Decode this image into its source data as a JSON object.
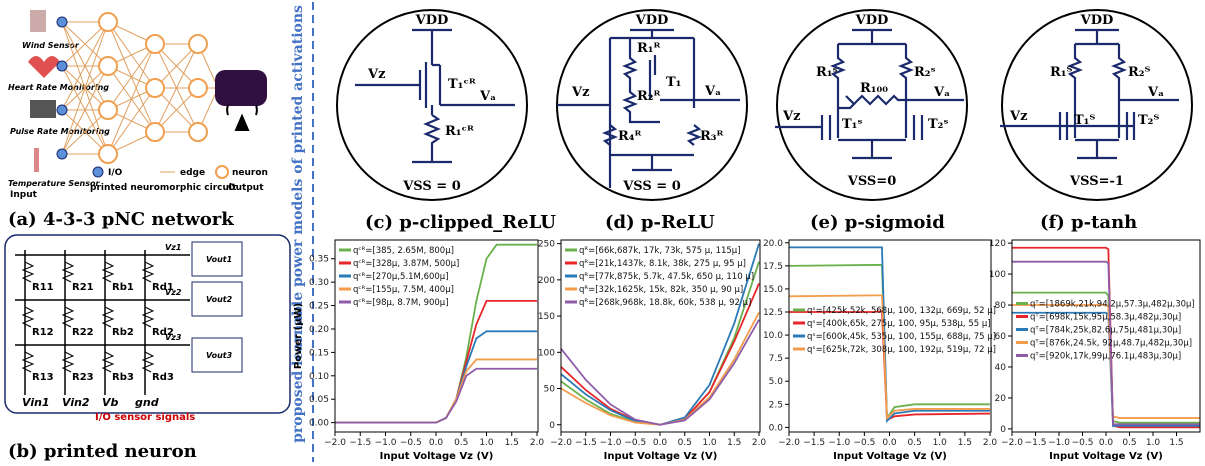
{
  "panel_a": {
    "caption": "(a) 4-3-3 pNC network",
    "sensors": [
      "Wind Sensor",
      "Heart Rate Monitoring",
      "Pulse Rate Monitoring",
      "Temperature Sensor"
    ],
    "legend": [
      "I/O",
      "edge",
      "neuron"
    ],
    "input": "Input",
    "middle": "printed neuromorphic circuit",
    "output": "Output"
  },
  "panel_b": {
    "caption": "(b) printed neuron",
    "resistors": [
      "R11",
      "R21",
      "Rb1",
      "Rd1",
      "R12",
      "R22",
      "Rb2",
      "Rd2",
      "R13",
      "R23",
      "Rb3",
      "Rd3"
    ],
    "vz": [
      "Vz1",
      "Vz2",
      "Vz3"
    ],
    "vout": [
      "Vout1",
      "Vout2",
      "Vout3"
    ],
    "bottom": [
      "Vin1",
      "Vin2",
      "Vb",
      "gnd"
    ],
    "note": "I/O sensor signals"
  },
  "side_title": "proposed learnable power models of printed activations",
  "circuits": [
    {
      "caption": "(c) p-clipped_ReLU",
      "labels": [
        "VDD",
        "Vz",
        "Vₐ",
        "T₁ᶜᴿ",
        "R₁ᶜᴿ",
        "VSS = 0"
      ]
    },
    {
      "caption": "(d) p-ReLU",
      "labels": [
        "VDD",
        "Vz",
        "Vₐ",
        "R₁ᴿ",
        "T₁",
        "R₂ᴿ",
        "R₄ᴿ",
        "R₃ᴿ",
        "VSS = 0"
      ]
    },
    {
      "caption": "(e) p-sigmoid",
      "labels": [
        "VDD",
        "Vz",
        "Vₐ",
        "R₁ˢ",
        "R₂ˢ",
        "R₁₀₀",
        "T₁ˢ",
        "T₂ˢ",
        "VSS=0"
      ]
    },
    {
      "caption": "(f) p-tanh",
      "labels": [
        "VDD",
        "Vz",
        "Vₐ",
        "R₁ᵀ",
        "R₂ᵀ",
        "T₁ᵀ",
        "T₂ᵀ",
        "VSS=-1"
      ]
    }
  ],
  "chart_data": [
    {
      "type": "line",
      "xlabel": "Input Voltage Vz (V)",
      "ylabel": "Power (µW)",
      "legend": "upper left",
      "x": [
        -2,
        -1,
        0,
        0.2,
        0.4,
        0.6,
        0.8,
        1.0,
        1.2,
        1.5,
        2
      ],
      "xlim": [
        -2,
        2.02
      ],
      "ylim": [
        -0.02,
        0.39
      ],
      "xticks": [
        {
          "value": -2,
          "label": "−2.0"
        },
        {
          "value": -1.5,
          "label": "−1.5"
        },
        {
          "value": -1,
          "label": "−1.0"
        },
        {
          "value": -0.5,
          "label": "−0.5"
        },
        {
          "value": 0,
          "label": "0.0"
        },
        {
          "value": 0.5,
          "label": "0.5"
        },
        {
          "value": 1,
          "label": "1.0"
        },
        {
          "value": 1.5,
          "label": "1.5"
        },
        {
          "value": 2,
          "label": "2.0"
        }
      ],
      "yticks": [
        {
          "value": 0,
          "label": "0.00"
        },
        {
          "value": 0.05,
          "label": "0.05"
        },
        {
          "value": 0.1,
          "label": "0.10"
        },
        {
          "value": 0.15,
          "label": "0.15"
        },
        {
          "value": 0.2,
          "label": "0.20"
        },
        {
          "value": 0.25,
          "label": "0.25"
        },
        {
          "value": 0.3,
          "label": "0.30"
        },
        {
          "value": 0.35,
          "label": "0.35"
        }
      ],
      "series": [
        {
          "name": "qᶜᴿ=[385, 2.65M, 800μ]",
          "color": "#6ab04c",
          "values": [
            0,
            0,
            0,
            0.01,
            0.05,
            0.14,
            0.26,
            0.35,
            0.38,
            0.38,
            0.38
          ]
        },
        {
          "name": "qᶜᴿ=[328μ, 3.87M, 500μ]",
          "color": "#e8262a",
          "values": [
            0,
            0,
            0,
            0.01,
            0.05,
            0.13,
            0.21,
            0.26,
            0.26,
            0.26,
            0.26
          ]
        },
        {
          "name": "qᶜᴿ=[270μ,5.1M,600μ]",
          "color": "#2a7ab8",
          "values": [
            0,
            0,
            0,
            0.01,
            0.05,
            0.12,
            0.18,
            0.195,
            0.195,
            0.195,
            0.195
          ]
        },
        {
          "name": "qᶜᴿ=[155μ, 7.5M, 400μ]",
          "color": "#f39c4c",
          "values": [
            0,
            0,
            0,
            0.01,
            0.05,
            0.11,
            0.135,
            0.135,
            0.135,
            0.135,
            0.135
          ]
        },
        {
          "name": "qᶜᴿ=[98μ, 8.7M, 900μ]",
          "color": "#8e5ca8",
          "values": [
            0,
            0,
            0,
            0.01,
            0.045,
            0.1,
            0.115,
            0.115,
            0.115,
            0.115,
            0.115
          ]
        }
      ]
    },
    {
      "type": "line",
      "xlabel": "Input Voltage Vz (V)",
      "legend": "upper left",
      "x": [
        -2,
        -1.5,
        -1,
        -0.5,
        0,
        0.5,
        1,
        1.5,
        2
      ],
      "xlim": [
        -2,
        2.02
      ],
      "ylim": [
        -10,
        255
      ],
      "xticks": [
        {
          "value": -2,
          "label": "−2.0"
        },
        {
          "value": -1.5,
          "label": "−1.5"
        },
        {
          "value": -1,
          "label": "−1.0"
        },
        {
          "value": -0.5,
          "label": "−0.5"
        },
        {
          "value": 0,
          "label": "0.0"
        },
        {
          "value": 0.5,
          "label": "0.5"
        },
        {
          "value": 1,
          "label": "1.0"
        },
        {
          "value": 1.5,
          "label": "1.5"
        },
        {
          "value": 2,
          "label": "2.0"
        }
      ],
      "yticks": [
        0,
        50,
        100,
        150,
        200,
        250
      ],
      "series": [
        {
          "name": "qᴿ=[66k,687k, 17k, 73k, 575 μ, 115μ]",
          "color": "#6ab04c",
          "values": [
            60,
            35,
            15,
            4,
            0,
            8,
            45,
            120,
            225
          ]
        },
        {
          "name": "qᴿ=[21k,1437k, 8.1k, 38k, 275 μ, 95 μ]",
          "color": "#e8262a",
          "values": [
            80,
            48,
            22,
            6,
            0,
            8,
            45,
            115,
            195
          ]
        },
        {
          "name": "qᴿ=[77k,875k, 5.7k, 47.5k, 650 μ, 110 μ]",
          "color": "#2a7ab8",
          "values": [
            70,
            42,
            20,
            5,
            0,
            10,
            55,
            140,
            250
          ]
        },
        {
          "name": "qᴿ=[32k,1625k, 15k, 82k, 350 μ, 90 μ]",
          "color": "#f39c4c",
          "values": [
            50,
            30,
            13,
            3,
            0,
            7,
            38,
            90,
            155
          ]
        },
        {
          "name": "qᴿ=[268k,968k, 18.8k, 60k, 538 μ, 92 μ]",
          "color": "#8e5ca8",
          "values": [
            105,
            62,
            28,
            7,
            0,
            6,
            35,
            85,
            145
          ]
        }
      ]
    },
    {
      "type": "line",
      "xlabel": "Input Voltage Vz (V)",
      "legend": "center left",
      "x": [
        -2,
        -0.3,
        -0.15,
        -0.05,
        0.1,
        0.5,
        2
      ],
      "xlim": [
        -2,
        2.02
      ],
      "ylim": [
        -0.5,
        20.3
      ],
      "xticks": [
        {
          "value": -2,
          "label": "−2.0"
        },
        {
          "value": -1.5,
          "label": "−1.5"
        },
        {
          "value": -1,
          "label": "−1.0"
        },
        {
          "value": -0.5,
          "label": "−0.5"
        },
        {
          "value": 0,
          "label": "0.0"
        },
        {
          "value": 0.5,
          "label": "0.5"
        },
        {
          "value": 1,
          "label": "1.0"
        },
        {
          "value": 1.5,
          "label": "1.5"
        },
        {
          "value": 2,
          "label": "2.0"
        }
      ],
      "yticks": [
        {
          "value": 0,
          "label": "0.0"
        },
        {
          "value": 2.5,
          "label": "2.5"
        },
        {
          "value": 5,
          "label": "5.0"
        },
        {
          "value": 7.5,
          "label": "7.5"
        },
        {
          "value": 10,
          "label": "10.0"
        },
        {
          "value": 12.5,
          "label": "12.5"
        },
        {
          "value": 15,
          "label": "15.0"
        },
        {
          "value": 17.5,
          "label": "17.5"
        },
        {
          "value": 20,
          "label": "20.0"
        }
      ],
      "series": [
        {
          "name": "qˢ=[425k,52k, 568μ, 100, 132μ, 669μ, 52 μ]",
          "color": "#6ab04c",
          "values": [
            17.5,
            17.6,
            17.6,
            1.0,
            2.2,
            2.5,
            2.5
          ]
        },
        {
          "name": "qˢ=[400k,65k, 275μ, 100, 95μ, 538μ, 55 μ]",
          "color": "#e8262a",
          "values": [
            12.5,
            12.5,
            12.6,
            0.8,
            1.2,
            1.4,
            1.5
          ]
        },
        {
          "name": "qˢ=[600k,45k, 535μ, 100, 155μ, 688μ, 75 μ]",
          "color": "#2a7ab8",
          "values": [
            19.5,
            19.5,
            19.5,
            0.7,
            1.5,
            1.8,
            1.8
          ]
        },
        {
          "name": "qˢ=[625k,72k, 308μ, 100, 192μ, 519μ, 72 μ]",
          "color": "#f39c4c",
          "values": [
            14.2,
            14.3,
            14.3,
            1.0,
            1.8,
            2.0,
            2.0
          ]
        }
      ]
    },
    {
      "type": "line",
      "xlabel": "Input Voltage Vz (V)",
      "legend": "center left",
      "x": [
        -2,
        0,
        0.05,
        0.15,
        0.3,
        2
      ],
      "xlim": [
        -2,
        2
      ],
      "ylim": [
        -2,
        122
      ],
      "xticks": [
        {
          "value": -2,
          "label": "−2.0"
        },
        {
          "value": -1.5,
          "label": "−1.5"
        },
        {
          "value": -1,
          "label": "−1.0"
        },
        {
          "value": -0.5,
          "label": "−0.5"
        },
        {
          "value": 0,
          "label": "0.0"
        },
        {
          "value": 0.5,
          "label": "0.5"
        },
        {
          "value": 1,
          "label": "1.0"
        },
        {
          "value": 1.5,
          "label": "1.5"
        }
      ],
      "yticks": [
        0,
        20,
        40,
        60,
        80,
        100,
        120
      ],
      "series": [
        {
          "name": "qᵀ=[1869k,21k,94.2μ,57.3μ,482μ,30μ]",
          "color": "#6ab04c",
          "values": [
            88,
            88,
            86,
            5,
            4,
            4
          ]
        },
        {
          "name": "qᵀ=[698k,15k,95μ,58.3μ,482μ,30μ]",
          "color": "#e8262a",
          "values": [
            117,
            117,
            116,
            2,
            1,
            1
          ]
        },
        {
          "name": "qᵀ=[784k,25k,82.6μ,75μ,481μ,30μ]",
          "color": "#2a7ab8",
          "values": [
            75,
            75,
            74,
            2,
            2,
            2
          ]
        },
        {
          "name": "qᵀ=[876k,24.5k, 92μ,48.7μ,482μ,30μ]",
          "color": "#f39c4c",
          "values": [
            80,
            80,
            79,
            8,
            7,
            7
          ]
        },
        {
          "name": "qᵀ=[920k,17k,99μ,76.1μ,483μ,30μ]",
          "color": "#8e5ca8",
          "values": [
            108,
            108,
            107,
            3,
            3,
            3
          ]
        }
      ]
    }
  ]
}
